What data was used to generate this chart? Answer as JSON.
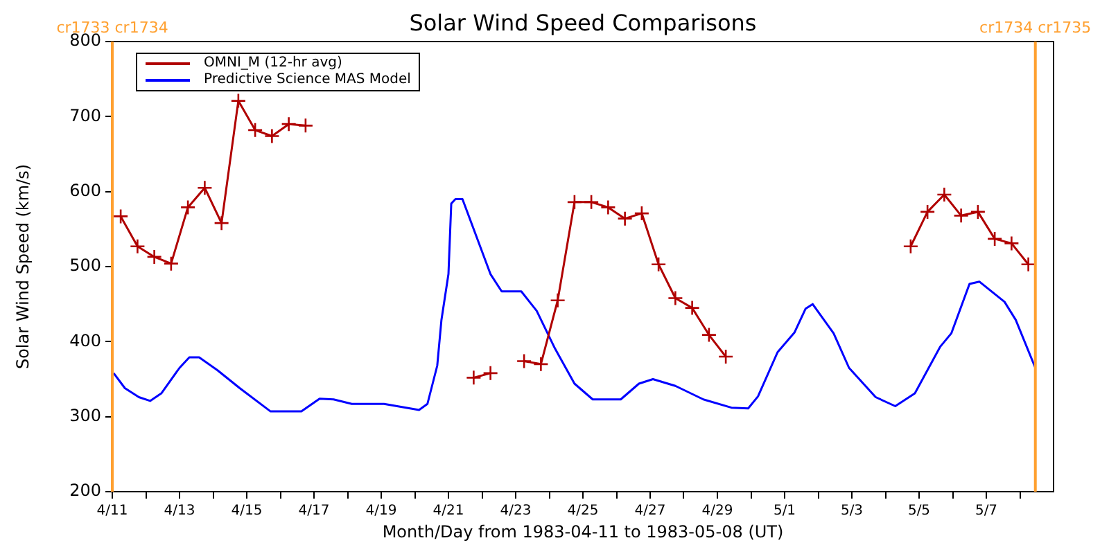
{
  "chart_data": {
    "type": "line",
    "title": "Solar Wind Speed Comparisons",
    "xlabel": "Month/Day from 1983-04-11 to 1983-05-08 (UT)",
    "ylabel": "Solar Wind Speed (km/s)",
    "xlim": [
      "1983-04-11",
      "1983-05-09"
    ],
    "ylim": [
      200,
      800
    ],
    "yticks": [
      200,
      300,
      400,
      500,
      600,
      700,
      800
    ],
    "xticks": [
      {
        "value": "1983-04-11",
        "label": "4/11"
      },
      {
        "value": "1983-04-12",
        "label": null
      },
      {
        "value": "1983-04-13",
        "label": "4/13"
      },
      {
        "value": "1983-04-14",
        "label": null
      },
      {
        "value": "1983-04-15",
        "label": "4/15"
      },
      {
        "value": "1983-04-16",
        "label": null
      },
      {
        "value": "1983-04-17",
        "label": "4/17"
      },
      {
        "value": "1983-04-18",
        "label": null
      },
      {
        "value": "1983-04-19",
        "label": "4/19"
      },
      {
        "value": "1983-04-20",
        "label": null
      },
      {
        "value": "1983-04-21",
        "label": "4/21"
      },
      {
        "value": "1983-04-22",
        "label": null
      },
      {
        "value": "1983-04-23",
        "label": "4/23"
      },
      {
        "value": "1983-04-24",
        "label": null
      },
      {
        "value": "1983-04-25",
        "label": "4/25"
      },
      {
        "value": "1983-04-26",
        "label": null
      },
      {
        "value": "1983-04-27",
        "label": "4/27"
      },
      {
        "value": "1983-04-28",
        "label": null
      },
      {
        "value": "1983-04-29",
        "label": "4/29"
      },
      {
        "value": "1983-04-30",
        "label": null
      },
      {
        "value": "1983-05-01",
        "label": "5/1"
      },
      {
        "value": "1983-05-02",
        "label": null
      },
      {
        "value": "1983-05-03",
        "label": "5/3"
      },
      {
        "value": "1983-05-04",
        "label": null
      },
      {
        "value": "1983-05-05",
        "label": "5/5"
      },
      {
        "value": "1983-05-06",
        "label": null
      },
      {
        "value": "1983-05-07",
        "label": "5/7"
      },
      {
        "value": "1983-05-08",
        "label": null
      }
    ],
    "grid": false,
    "legend": "top left",
    "ref_lines": [
      {
        "axis": "x",
        "value": "1983-04-11",
        "label": "cr1733 cr1734",
        "color": "#ffa030"
      },
      {
        "axis": "x",
        "value": "1983-05-08T11:00",
        "label": "cr1734 cr1735",
        "color": "#ffa030"
      }
    ],
    "series": [
      {
        "name": "OMNI_M (12-hr avg)",
        "color": "#b00000",
        "marker": "cross",
        "x": [
          "1983-04-11T06:00",
          "1983-04-11T18:00",
          "1983-04-12T06:00",
          "1983-04-12T18:00",
          "1983-04-13T06:00",
          "1983-04-13T18:00",
          "1983-04-14T06:00",
          "1983-04-14T18:00",
          "1983-04-15T06:00",
          "1983-04-15T18:00",
          "1983-04-16T06:00",
          "1983-04-16T18:00",
          "1983-04-17T06:00",
          "1983-04-21T18:00",
          "1983-04-22T06:00",
          "1983-04-22T18:00",
          "1983-04-23T06:00",
          "1983-04-23T18:00",
          "1983-04-24T06:00",
          "1983-04-24T18:00",
          "1983-04-25T06:00",
          "1983-04-25T18:00",
          "1983-04-26T06:00",
          "1983-04-26T18:00",
          "1983-04-27T06:00",
          "1983-04-27T18:00",
          "1983-04-28T06:00",
          "1983-04-28T18:00",
          "1983-04-29T06:00",
          "1983-04-29T18:00",
          "1983-05-04T18:00",
          "1983-05-05T06:00",
          "1983-05-05T18:00",
          "1983-05-06T06:00",
          "1983-05-06T18:00",
          "1983-05-07T06:00",
          "1983-05-07T18:00",
          "1983-05-08T06:00"
        ],
        "values": [
          567,
          527,
          513,
          504,
          579,
          605,
          558,
          721,
          682,
          674,
          690,
          688,
          null,
          352,
          358,
          null,
          374,
          370,
          455,
          586,
          586,
          579,
          564,
          571,
          503,
          458,
          445,
          409,
          380,
          null,
          527,
          573,
          596,
          568,
          573,
          537,
          531,
          503
        ]
      },
      {
        "name": "Predictive Science MAS Model",
        "color": "#0000ff",
        "marker": "none",
        "x": [
          "1983-04-11T01:00",
          "1983-04-11T09:00",
          "1983-04-11T19:00",
          "1983-04-12T03:00",
          "1983-04-12T11:00",
          "1983-04-13T00:00",
          "1983-04-13T07:00",
          "1983-04-13T14:00",
          "1983-04-14T03:00",
          "1983-04-14T19:00",
          "1983-04-15T17:00",
          "1983-04-16T15:00",
          "1983-04-17T04:00",
          "1983-04-17T14:00",
          "1983-04-18T03:00",
          "1983-04-19T02:00",
          "1983-04-20T03:00",
          "1983-04-20T09:00",
          "1983-04-20T16:00",
          "1983-04-20T19:00",
          "1983-04-21T00:00",
          "1983-04-21T02:00",
          "1983-04-21T05:00",
          "1983-04-21T10:00",
          "1983-04-22T06:00",
          "1983-04-22T14:00",
          "1983-04-23T04:00",
          "1983-04-23T15:00",
          "1983-04-24T04:00",
          "1983-04-24T18:00",
          "1983-04-25T07:00",
          "1983-04-26T03:00",
          "1983-04-26T16:00",
          "1983-04-27T02:00",
          "1983-04-27T18:00",
          "1983-04-28T14:00",
          "1983-04-29T10:00",
          "1983-04-29T22:00",
          "1983-04-30T05:00",
          "1983-04-30T19:00",
          "1983-05-01T07:00",
          "1983-05-01T15:00",
          "1983-05-01T20:00",
          "1983-05-02T11:00",
          "1983-05-02T22:00",
          "1983-05-03T17:00",
          "1983-05-04T07:00",
          "1983-05-04T21:00",
          "1983-05-05T15:00",
          "1983-05-05T23:00",
          "1983-05-06T12:00",
          "1983-05-06T19:00",
          "1983-05-07T13:00",
          "1983-05-07T21:00",
          "1983-05-08T11:00"
        ],
        "values": [
          358,
          338,
          326,
          321,
          331,
          365,
          379,
          379,
          362,
          338,
          307,
          307,
          324,
          323,
          317,
          317,
          309,
          317,
          368,
          429,
          490,
          584,
          590,
          590,
          490,
          467,
          467,
          441,
          391,
          344,
          323,
          323,
          344,
          350,
          341,
          323,
          312,
          311,
          327,
          386,
          412,
          444,
          450,
          411,
          365,
          326,
          314,
          331,
          393,
          411,
          477,
          480,
          453,
          429,
          365
        ]
      }
    ]
  }
}
